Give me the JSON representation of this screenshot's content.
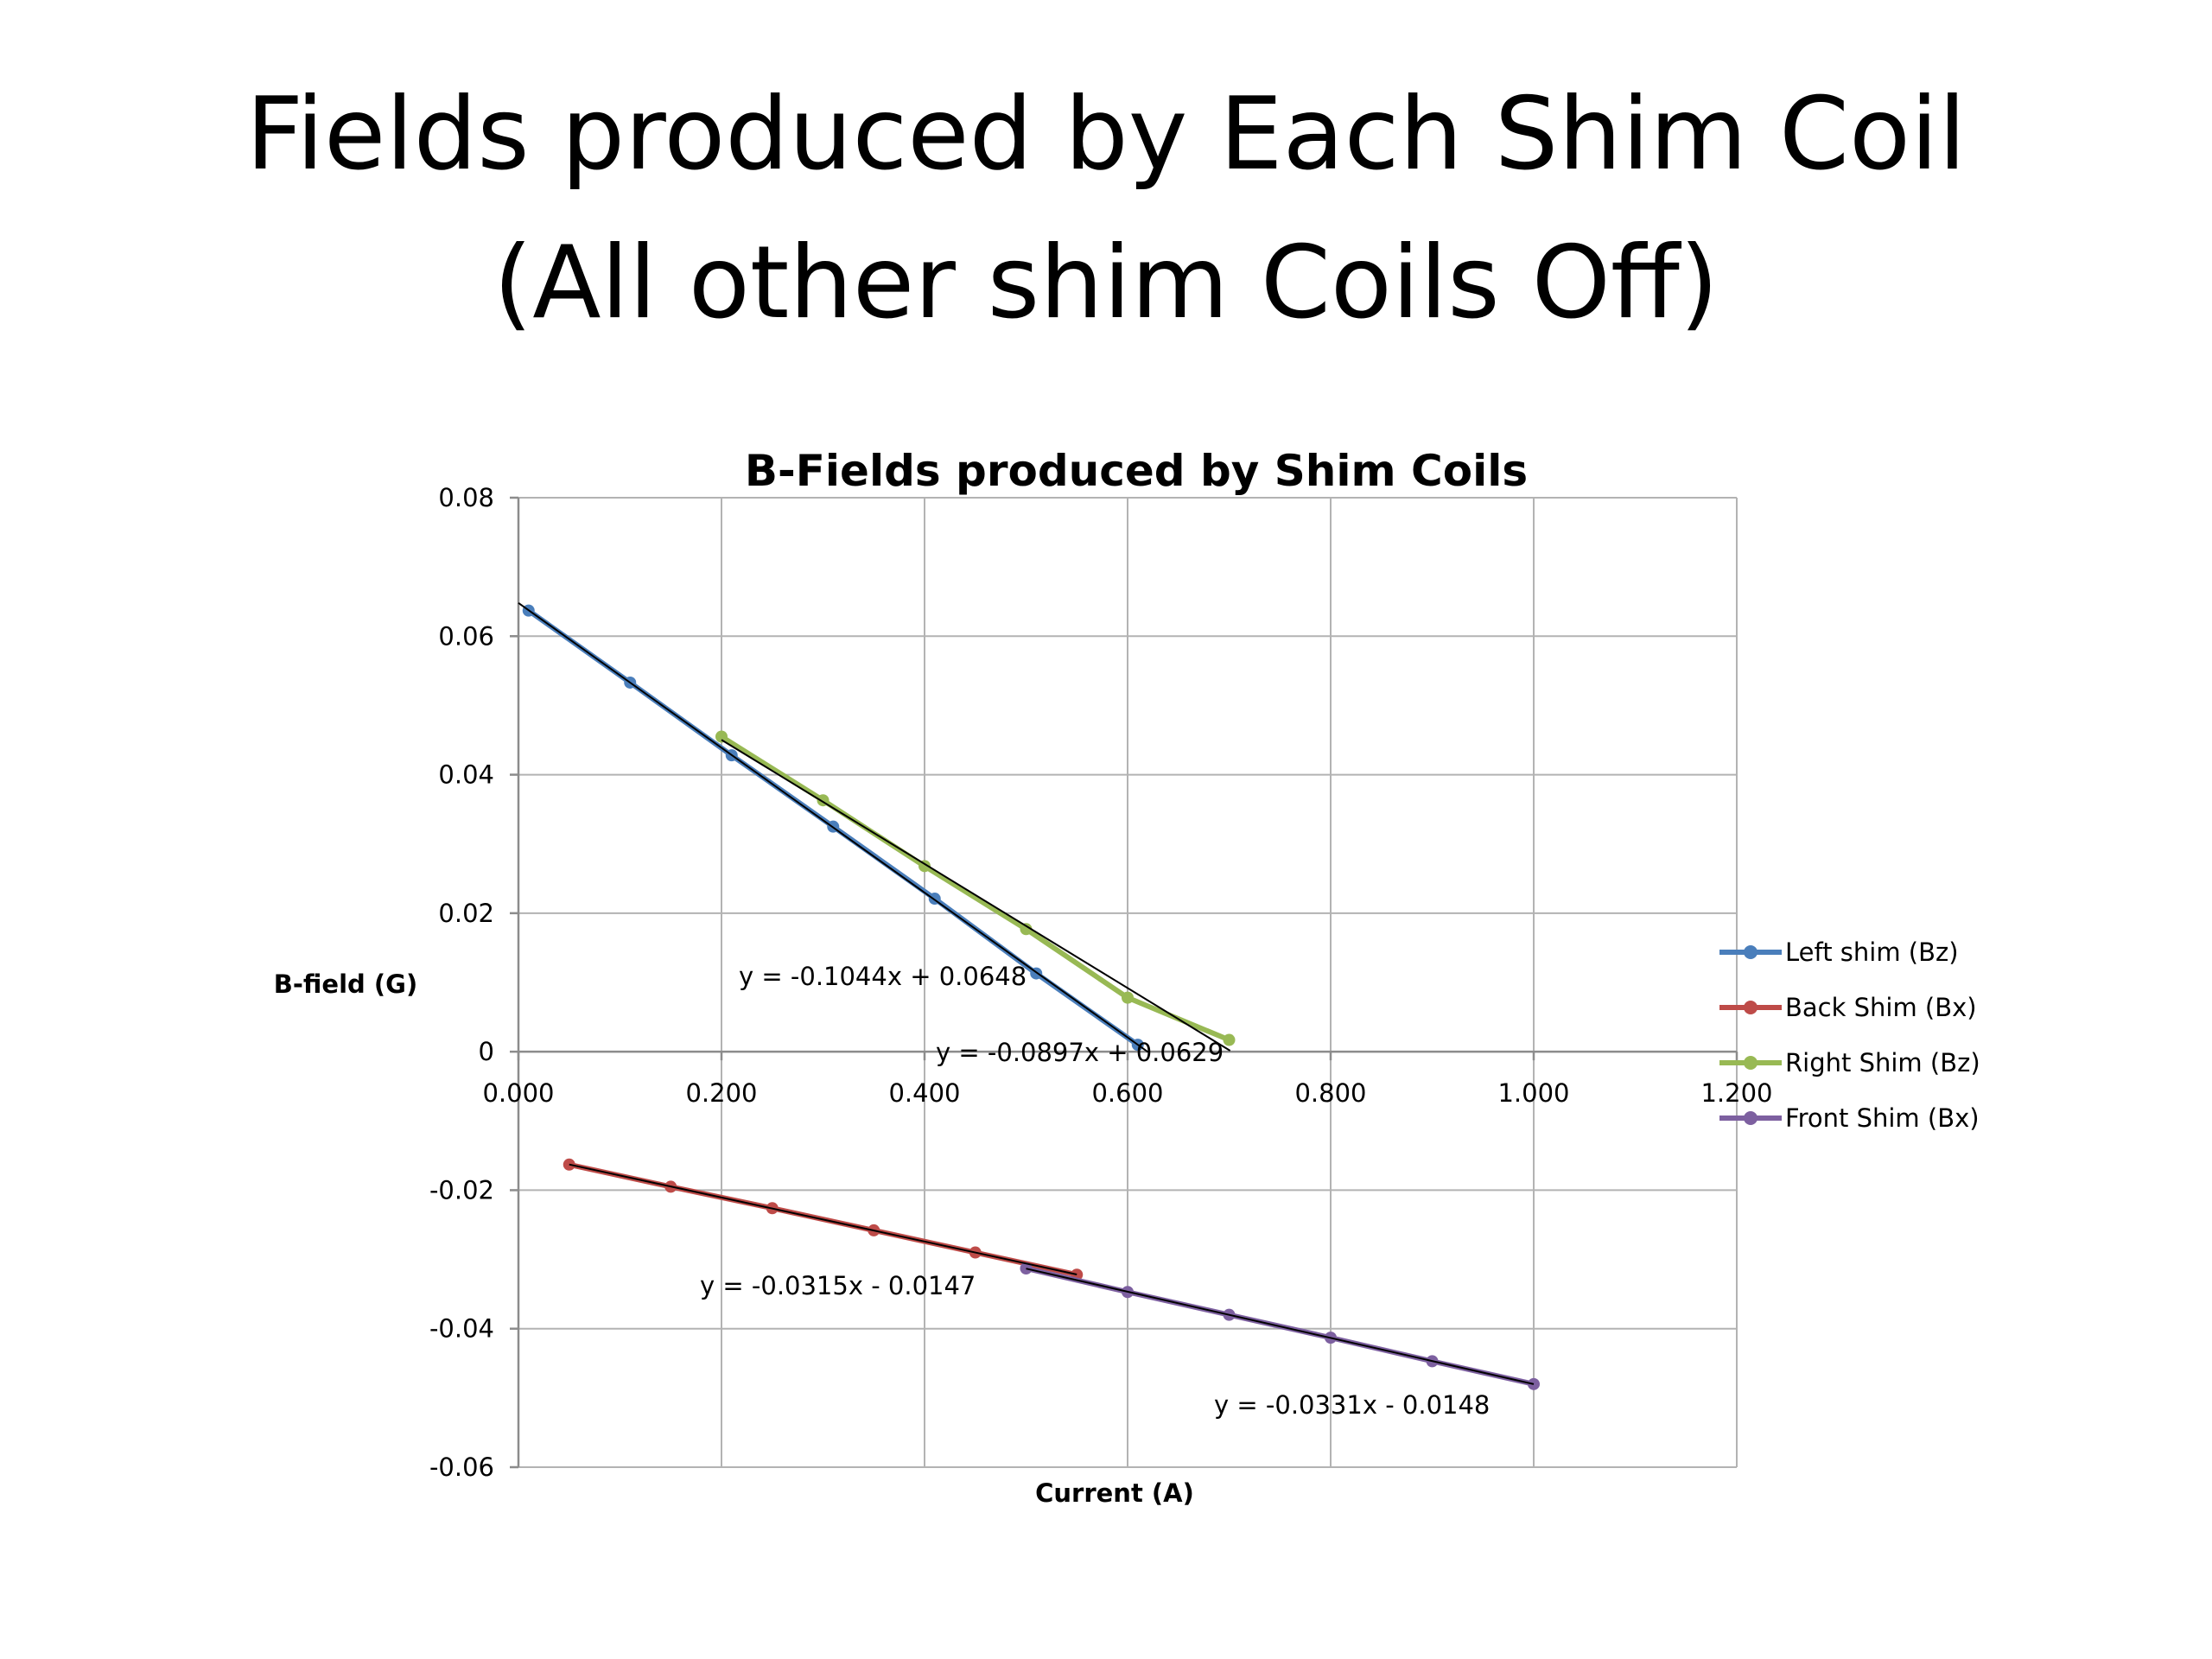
{
  "slide": {
    "title_line1": "Fields produced by Each Shim Coil",
    "title_line2": "(All other shim Coils Off)"
  },
  "chart_data": {
    "type": "scatter",
    "title": "B-Fields produced by Shim Coils",
    "xlabel": "Current (A)",
    "ylabel": "B-field (G)",
    "xlim": [
      0,
      1.2
    ],
    "ylim": [
      -0.06,
      0.08
    ],
    "x_ticks": [
      "0.000",
      "0.200",
      "0.400",
      "0.600",
      "0.800",
      "1.000",
      "1.200"
    ],
    "y_ticks": [
      "0.08",
      "0.06",
      "0.04",
      "0.02",
      "0",
      "-0.02",
      "-0.04",
      "-0.06"
    ],
    "y_tick_values": [
      0.08,
      0.06,
      0.04,
      0.02,
      0,
      -0.02,
      -0.04,
      -0.06
    ],
    "x_tick_values": [
      0,
      0.2,
      0.4,
      0.6,
      0.8,
      1.0,
      1.2
    ],
    "grid": true,
    "legend_position": "right",
    "series": [
      {
        "name": "Left shim (Bz)",
        "color": "#4a7ebb",
        "x": [
          0.01,
          0.11,
          0.21,
          0.31,
          0.41,
          0.51,
          0.61
        ],
        "y": [
          0.0637,
          0.0533,
          0.0428,
          0.0325,
          0.0221,
          0.0113,
          0.001
        ],
        "trendline": {
          "x": [
            0.0,
            0.62
          ],
          "label": "y = -0.1044x + 0.0648"
        }
      },
      {
        "name": "Back Shim (Bx)",
        "color": "#be4b48",
        "x": [
          0.05,
          0.15,
          0.25,
          0.35,
          0.45,
          0.55
        ],
        "y": [
          -0.0163,
          -0.0195,
          -0.0226,
          -0.0258,
          -0.029,
          -0.0322
        ],
        "trendline": {
          "x": [
            0.05,
            0.55
          ],
          "label": "y = -0.0315x - 0.0147"
        }
      },
      {
        "name": "Right Shim (Bz)",
        "color": "#98b954",
        "x": [
          0.2,
          0.3,
          0.4,
          0.5,
          0.6,
          0.7
        ],
        "y": [
          0.0455,
          0.0363,
          0.0268,
          0.0177,
          0.0078,
          0.0017
        ],
        "trendline": {
          "x": [
            0.2,
            0.701
          ],
          "label": "y = -0.0897x + 0.0629"
        }
      },
      {
        "name": "Front Shim (Bx)",
        "color": "#7d60a0",
        "x": [
          0.5,
          0.6,
          0.7,
          0.8,
          0.9,
          1.0
        ],
        "y": [
          -0.0313,
          -0.0347,
          -0.038,
          -0.0413,
          -0.0447,
          -0.048
        ],
        "trendline": {
          "x": [
            0.5,
            1.0
          ],
          "label": "y = -0.0331x - 0.0148"
        }
      }
    ]
  }
}
